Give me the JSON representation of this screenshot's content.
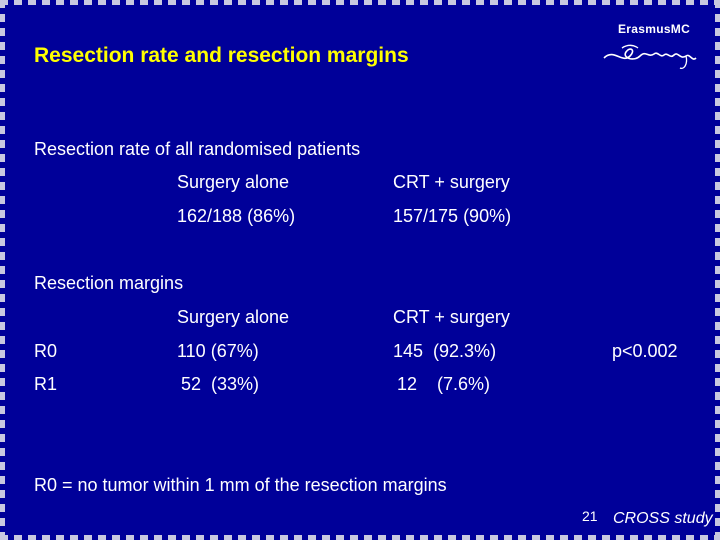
{
  "slide": {
    "title": "Resection rate and resection margins",
    "logo_text": "ErasmusMC",
    "section1": {
      "heading": "Resection rate of all  randomised patients",
      "col1_header": "Surgery alone",
      "col2_header": "CRT + surgery",
      "col1_value": "162/188 (86%)",
      "col2_value": "157/175 (90%)"
    },
    "section2": {
      "heading": "Resection margins",
      "col1_header": "Surgery alone",
      "col2_header": "CRT + surgery",
      "rows": [
        {
          "label": "R0",
          "col1": "110 (67%)",
          "col2": "145  (92.3%)"
        },
        {
          "label": "R1",
          "col1": "52  (33%)",
          "col2": "12    (7.6%)"
        }
      ],
      "p_value": "p<0.002"
    },
    "footnote": "R0 = no tumor within 1 mm of the resection margins",
    "page_number": "21",
    "study_label": "CROSS study",
    "colors": {
      "background": "#000099",
      "title": "#ffff00",
      "text": "#ffffff"
    }
  }
}
